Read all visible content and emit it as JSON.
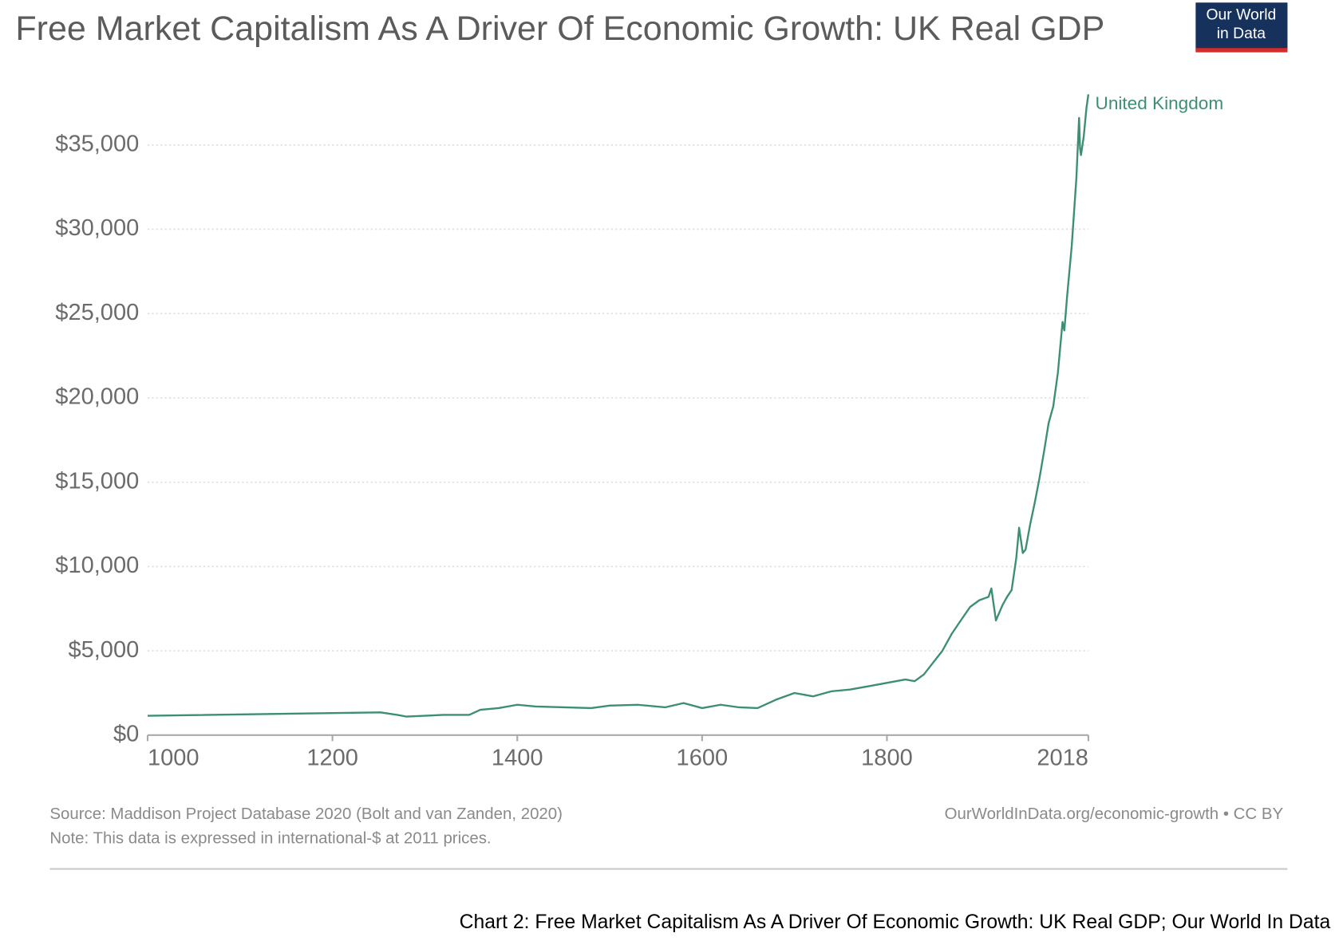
{
  "chart_data": {
    "type": "line",
    "title": "Free Market Capitalism As A Driver Of Economic Growth: UK Real GDP",
    "x": [
      1000,
      1252,
      1270,
      1280,
      1300,
      1320,
      1348,
      1360,
      1380,
      1400,
      1420,
      1450,
      1480,
      1500,
      1530,
      1560,
      1580,
      1600,
      1620,
      1640,
      1660,
      1680,
      1700,
      1720,
      1740,
      1760,
      1780,
      1800,
      1820,
      1830,
      1840,
      1850,
      1860,
      1870,
      1880,
      1890,
      1900,
      1910,
      1913,
      1918,
      1925,
      1930,
      1935,
      1940,
      1943,
      1947,
      1950,
      1955,
      1960,
      1965,
      1970,
      1975,
      1980,
      1985,
      1990,
      1992,
      1995,
      2000,
      2005,
      2007,
      2008,
      2009,
      2010,
      2013,
      2016,
      2018
    ],
    "series": [
      {
        "name": "United Kingdom",
        "color": "#3d8f72",
        "values": [
          1150,
          1350,
          1200,
          1100,
          1150,
          1200,
          1200,
          1500,
          1600,
          1800,
          1700,
          1650,
          1600,
          1750,
          1800,
          1650,
          1900,
          1600,
          1800,
          1650,
          1600,
          2100,
          2500,
          2300,
          2600,
          2700,
          2900,
          3100,
          3300,
          3200,
          3600,
          4300,
          5000,
          6000,
          6800,
          7600,
          8000,
          8200,
          8700,
          6800,
          7700,
          8200,
          8600,
          10500,
          12300,
          10800,
          11000,
          12500,
          13800,
          15200,
          16800,
          18500,
          19500,
          21500,
          24500,
          24000,
          26000,
          29000,
          33000,
          35500,
          36600,
          34800,
          34400,
          35500,
          37200,
          38000
        ]
      }
    ],
    "xlim": [
      1000,
      2018
    ],
    "xticks": [
      1000,
      1200,
      1400,
      1600,
      1800,
      2018
    ],
    "ylim": [
      0,
      38000
    ],
    "yticks": [
      {
        "value": 0,
        "label": "$0"
      },
      {
        "value": 5000,
        "label": "$5,000"
      },
      {
        "value": 10000,
        "label": "$10,000"
      },
      {
        "value": 15000,
        "label": "$15,000"
      },
      {
        "value": 20000,
        "label": "$20,000"
      },
      {
        "value": 25000,
        "label": "$25,000"
      },
      {
        "value": 30000,
        "label": "$30,000"
      },
      {
        "value": 35000,
        "label": "$35,000"
      }
    ],
    "grid": true,
    "source": "Source: Maddison Project Database 2020 (Bolt and van Zanden, 2020)",
    "note": "Note: This data is expressed in international-$ at 2011 prices.",
    "attribution": "OurWorldInData.org/economic-growth • CC BY"
  },
  "logo": [
    "Our World",
    "in Data"
  ],
  "caption": "Chart 2: Free Market Capitalism As A Driver Of Economic Growth: UK Real GDP; Our World In Data"
}
